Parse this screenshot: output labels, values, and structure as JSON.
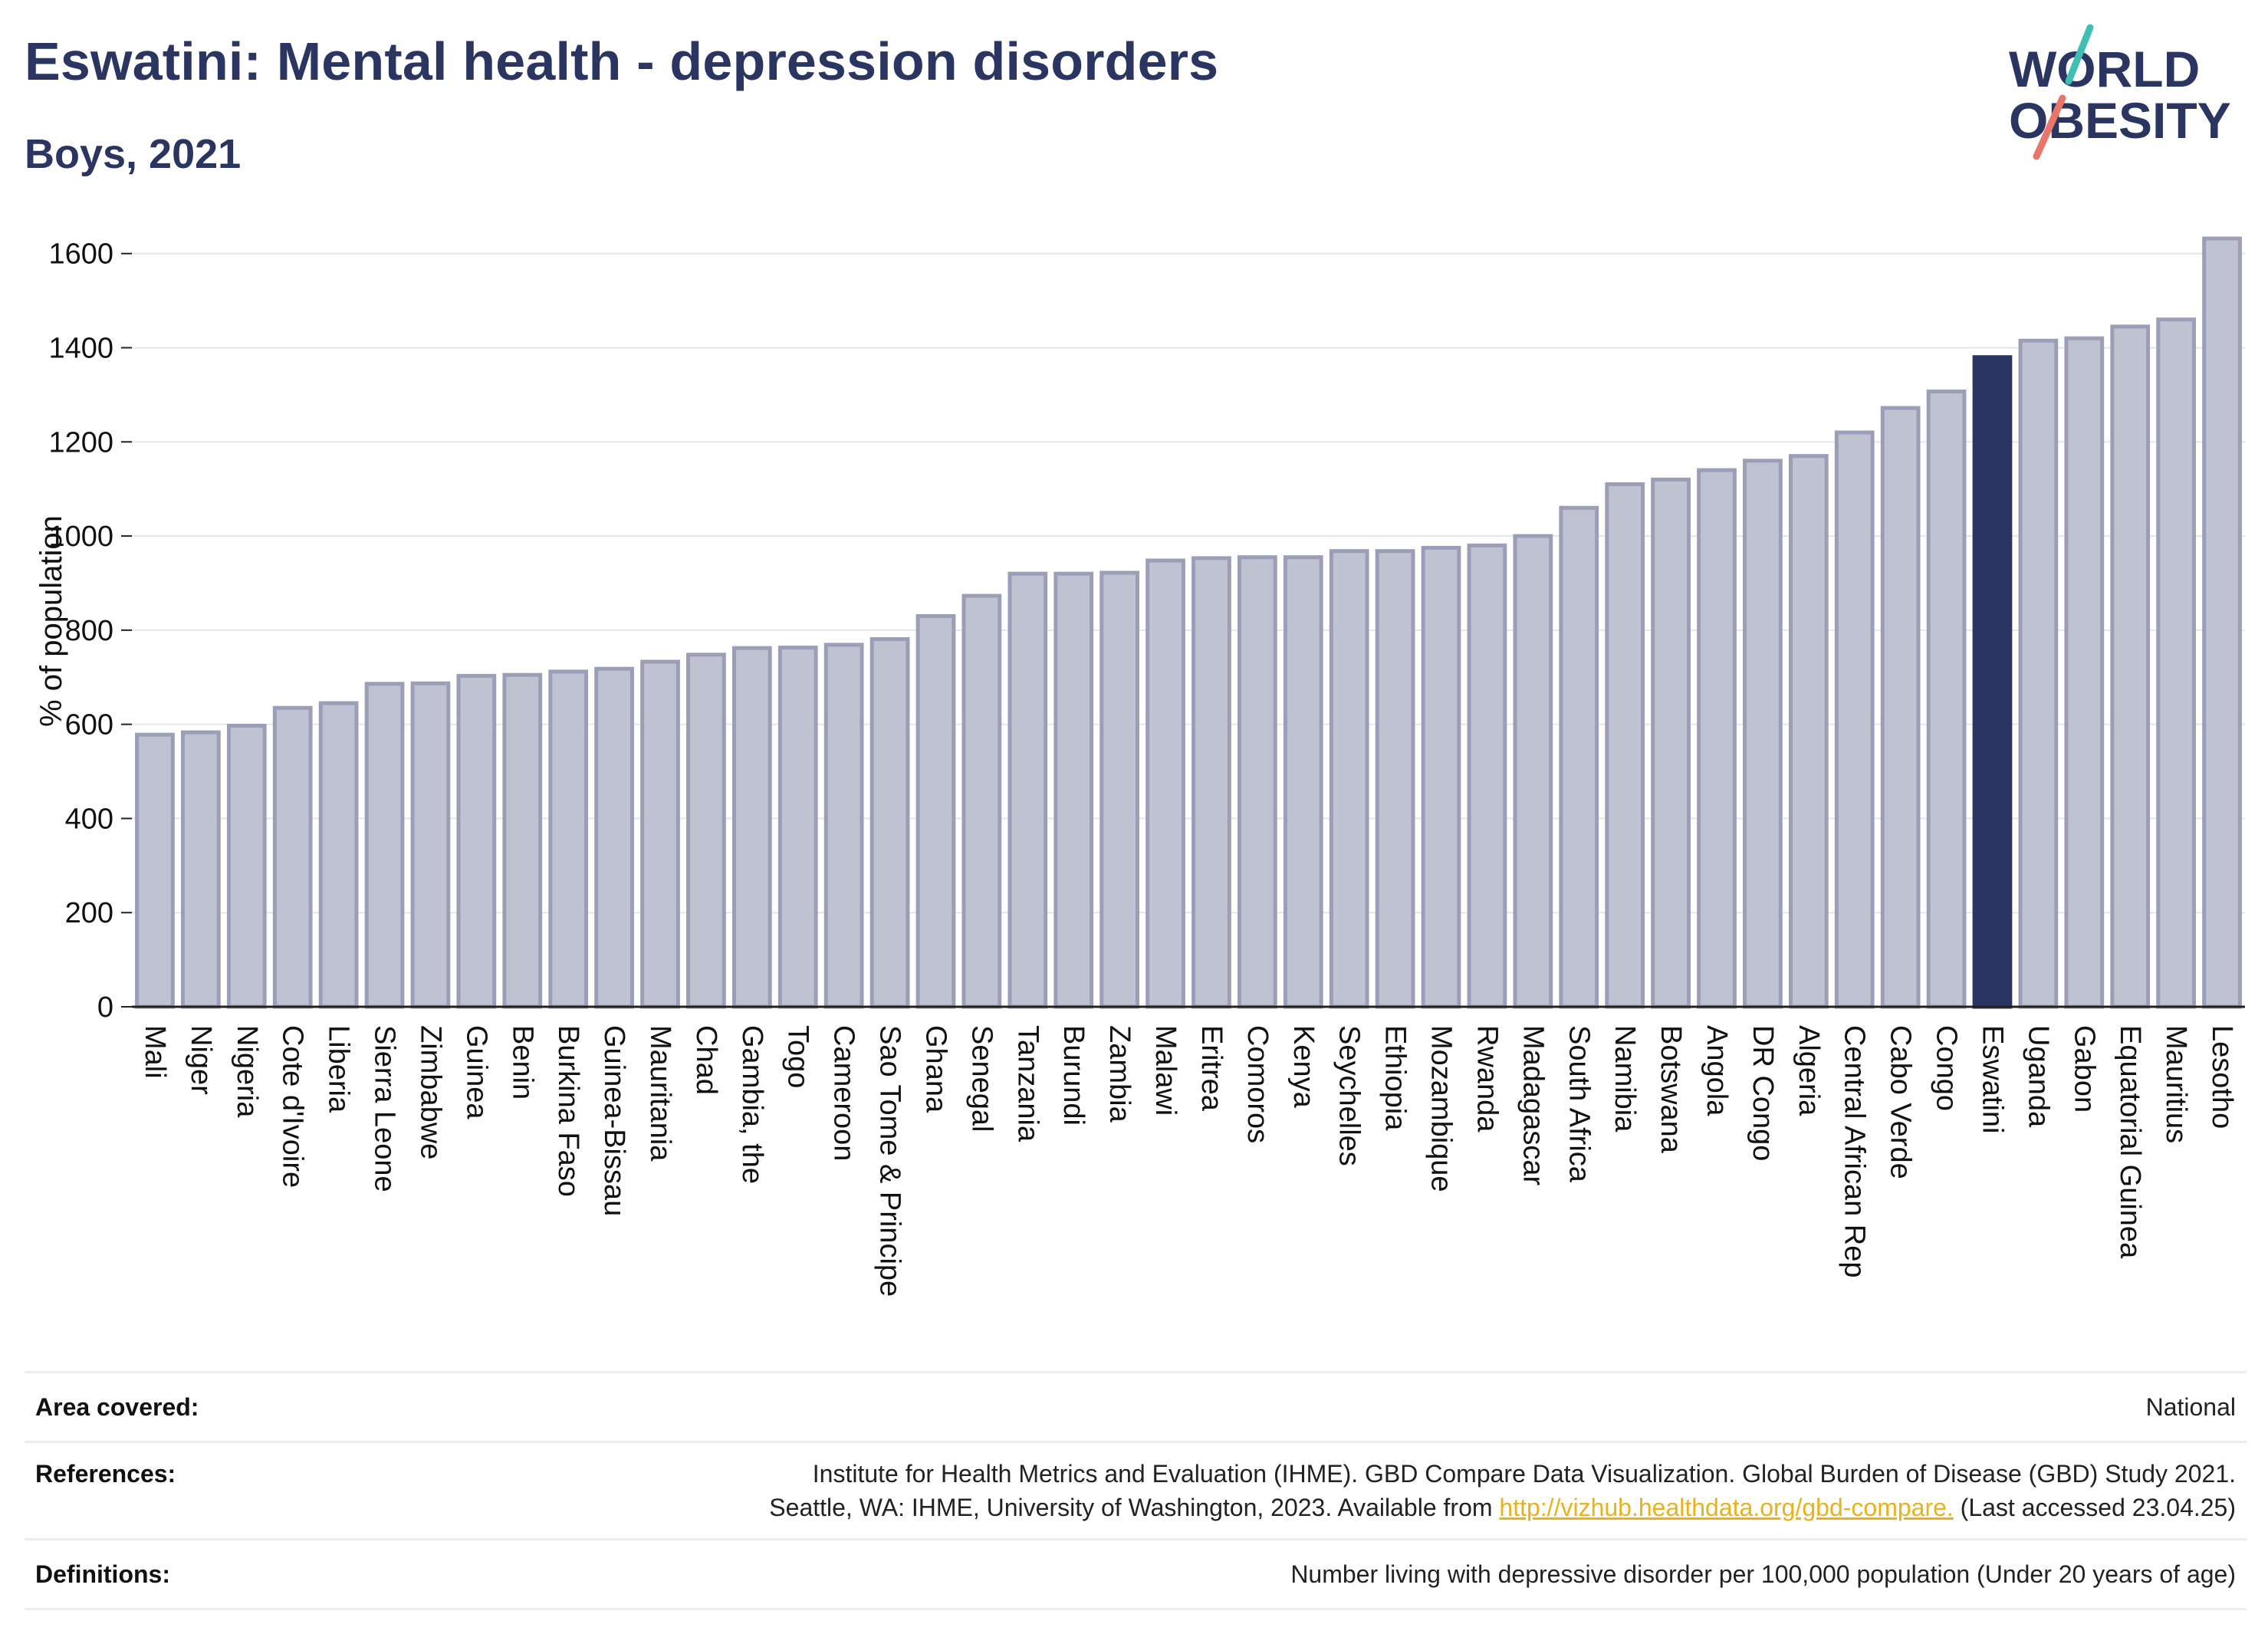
{
  "header": {
    "title": "Eswatini: Mental health - depression disorders",
    "subtitle": "Boys, 2021",
    "logo_text_line1": "WORLD",
    "logo_text_line2": "OBESITY"
  },
  "colors": {
    "title": "#2b3561",
    "bar_default": "#bfc2d1",
    "bar_default_stroke": "#9a9eb7",
    "bar_highlight": "#2b3561",
    "grid": "#e6e6e6",
    "link": "#e8b21d",
    "logo_teal": "#3fbfb4",
    "logo_coral": "#e8776a"
  },
  "chart_data": {
    "type": "bar",
    "ylabel": "% of population",
    "xlabel": "",
    "ylim": [
      0,
      1650
    ],
    "yticks": [
      0,
      200,
      400,
      600,
      800,
      1000,
      1200,
      1400,
      1600
    ],
    "grid": true,
    "highlight": "Eswatini",
    "categories": [
      "Mali",
      "Niger",
      "Nigeria",
      "Cote d'Ivoire",
      "Liberia",
      "Sierra Leone",
      "Zimbabwe",
      "Guinea",
      "Benin",
      "Burkina Faso",
      "Guinea-Bissau",
      "Mauritania",
      "Chad",
      "Gambia, the",
      "Togo",
      "Cameroon",
      "Sao Tome & Principe",
      "Ghana",
      "Senegal",
      "Tanzania",
      "Burundi",
      "Zambia",
      "Malawi",
      "Eritrea",
      "Comoros",
      "Kenya",
      "Seychelles",
      "Ethiopia",
      "Mozambique",
      "Rwanda",
      "Madagascar",
      "South Africa",
      "Namibia",
      "Botswana",
      "Angola",
      "DR Congo",
      "Algeria",
      "Central African Rep",
      "Cabo Verde",
      "Congo",
      "Eswatini",
      "Uganda",
      "Gabon",
      "Equatorial Guinea",
      "Mauritius",
      "Lesotho"
    ],
    "values": [
      578,
      583,
      597,
      635,
      645,
      686,
      687,
      703,
      705,
      712,
      718,
      733,
      748,
      762,
      763,
      769,
      781,
      830,
      873,
      920,
      920,
      922,
      948,
      953,
      955,
      955,
      968,
      968,
      975,
      980,
      1000,
      1060,
      1110,
      1120,
      1140,
      1160,
      1170,
      1220,
      1272,
      1307,
      1380,
      1415,
      1420,
      1445,
      1460,
      1632
    ]
  },
  "footer": {
    "area_label": "Area covered:",
    "area_value": "National",
    "references_label": "References:",
    "references_line1": "Institute for Health Metrics and Evaluation (IHME). GBD Compare Data Visualization. Global Burden of Disease (GBD) Study 2021.",
    "references_line2_pre": "Seattle, WA: IHME, University of Washington, 2023. Available from ",
    "references_link": "http://vizhub.healthdata.org/gbd-compare.",
    "references_line2_post": " (Last accessed 23.04.25)",
    "definitions_label": "Definitions:",
    "definitions_value": "Number living with depressive disorder per 100,000 population (Under 20 years of age)"
  }
}
